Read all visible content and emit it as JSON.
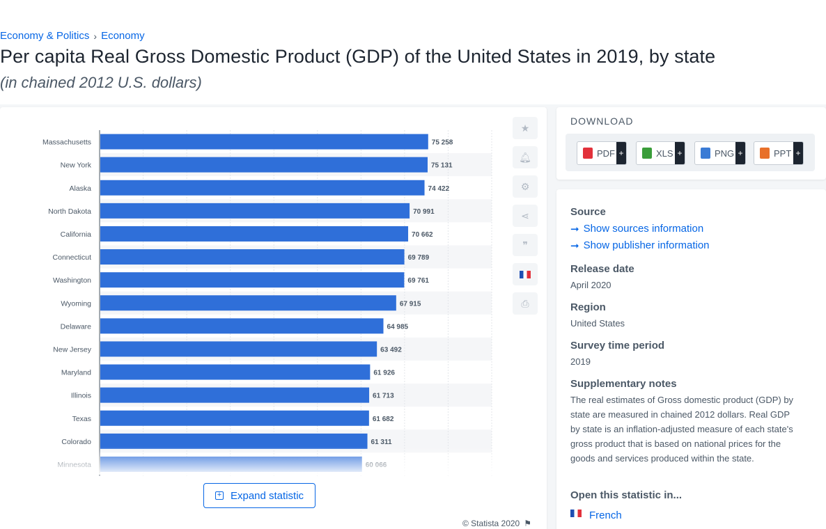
{
  "breadcrumb": [
    "Economy & Politics",
    "Economy"
  ],
  "title": "Per capita Real Gross Domestic Product (GDP) of the United States in 2019, by state",
  "subtitle": "(in chained 2012 U.S. dollars)",
  "toolbar_icons": [
    "star-icon",
    "bell-icon",
    "gear-icon",
    "share-icon",
    "quote-icon",
    "flag-icon",
    "print-icon"
  ],
  "expand_label": "Expand statistic",
  "copyright": "© Statista 2020",
  "download": {
    "heading": "DOWNLOAD",
    "buttons": [
      {
        "label": "PDF",
        "color": "#e2313b"
      },
      {
        "label": "XLS",
        "color": "#3a9d3a"
      },
      {
        "label": "PNG",
        "color": "#3a7bd5"
      },
      {
        "label": "PPT",
        "color": "#e8702a"
      }
    ],
    "plus": "+"
  },
  "info": {
    "source_label": "Source",
    "show_sources": "Show sources information",
    "show_publisher": "Show publisher information",
    "release_label": "Release date",
    "release_value": "April 2020",
    "region_label": "Region",
    "region_value": "United States",
    "survey_label": "Survey time period",
    "survey_value": "2019",
    "notes_label": "Supplementary notes",
    "notes_value": "The real estimates of Gross domestic product (GDP) by state are measured in chained 2012 dollars. Real GDP by state is an inflation-adjusted measure of each state's gross product that is based on national prices for the goods and services produced within the state.",
    "open_label": "Open this statistic in...",
    "open_french": "French"
  },
  "chart_data": {
    "type": "bar",
    "orientation": "horizontal",
    "categories": [
      "Massachusetts",
      "New York",
      "Alaska",
      "North Dakota",
      "California",
      "Connecticut",
      "Washington",
      "Wyoming",
      "Delaware",
      "New Jersey",
      "Maryland",
      "Illinois",
      "Texas",
      "Colorado",
      "Minnesota"
    ],
    "values": [
      75258,
      75131,
      74422,
      70991,
      70662,
      69789,
      69761,
      67915,
      64985,
      63492,
      61926,
      61713,
      61682,
      61311,
      60066
    ],
    "value_labels": [
      "75 258",
      "75 131",
      "74 422",
      "70 991",
      "70 662",
      "69 789",
      "69 761",
      "67 915",
      "64 985",
      "63 492",
      "61 926",
      "61 713",
      "61 682",
      "61 311",
      "60 066"
    ],
    "xlim": [
      0,
      90000
    ],
    "bar_color": "#2f6fd9",
    "grid": true
  }
}
